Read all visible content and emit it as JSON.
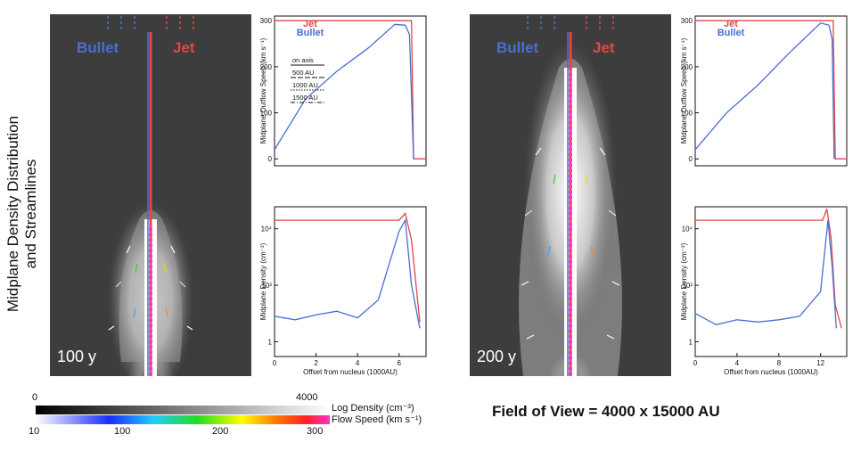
{
  "figure": {
    "vertical_title_line1": "Midplane Density Distribution",
    "vertical_title_line2": "and Streamlines",
    "field_of_view": "Field of View = 4000 x 15000 AU",
    "colorbar": {
      "density_min": "0",
      "density_max": "4000",
      "density_label": "Log Density (cm⁻³)",
      "speed_ticks": [
        "10",
        "100",
        "200",
        "300"
      ],
      "speed_label": "Flow Speed (km s⁻¹)"
    }
  },
  "panels": [
    {
      "time": "100 y",
      "bullet_label": "Bullet",
      "jet_label": "Jet"
    },
    {
      "time": "200 y",
      "bullet_label": "Bullet",
      "jet_label": "Jet"
    }
  ],
  "chart_data": [
    {
      "type": "line",
      "panel": "100 y outflow speed",
      "ylabel": "Midplane Outflow Speed (km s⁻¹)",
      "xlim": [
        0,
        7.3
      ],
      "ylim": [
        -15,
        310
      ],
      "yticks": [
        "0",
        "100",
        "200",
        "300"
      ],
      "legend": [
        "Jet",
        "Bullet"
      ],
      "legend_small": [
        "on axis",
        "500 AU",
        "1000 AU",
        "1500 AU"
      ],
      "series": [
        {
          "name": "Jet",
          "x": [
            0,
            6.6,
            6.7,
            7.3
          ],
          "y": [
            300,
            300,
            0,
            0
          ]
        },
        {
          "name": "Bullet",
          "x": [
            0,
            1.5,
            3.0,
            4.5,
            5.8,
            6.3,
            6.5,
            6.7
          ],
          "y": [
            20,
            130,
            190,
            240,
            292,
            290,
            270,
            0
          ]
        }
      ]
    },
    {
      "type": "line",
      "panel": "100 y density",
      "xlabel": "Offset from nucleus (1000AU)",
      "ylabel": "Midplane Density (cm⁻³)",
      "xlim": [
        0,
        7.3
      ],
      "ylim": [
        0.3,
        60000
      ],
      "yticks": [
        "1",
        "10²",
        "10⁴"
      ],
      "xticks": [
        "0",
        "2",
        "4",
        "6"
      ],
      "series": [
        {
          "name": "Jet",
          "x": [
            0,
            6.0,
            6.3,
            6.6,
            7.0
          ],
          "y": [
            20000,
            20000,
            35000,
            4000,
            5
          ]
        },
        {
          "name": "Bullet",
          "x": [
            0,
            1,
            2,
            3,
            4,
            5,
            6.0,
            6.3,
            6.6,
            7.0
          ],
          "y": [
            8,
            6,
            9,
            12,
            7,
            30,
            8000,
            20000,
            100,
            3
          ]
        }
      ]
    },
    {
      "type": "line",
      "panel": "200 y outflow speed",
      "ylabel": "Midplane Outflow Speed (km s⁻¹)",
      "xlim": [
        0,
        14.5
      ],
      "ylim": [
        -15,
        310
      ],
      "yticks": [
        "0",
        "100",
        "200",
        "300"
      ],
      "legend": [
        "Jet",
        "Bullet"
      ],
      "series": [
        {
          "name": "Jet",
          "x": [
            0,
            13.2,
            13.4,
            14.5
          ],
          "y": [
            300,
            300,
            0,
            0
          ]
        },
        {
          "name": "Bullet",
          "x": [
            0,
            3,
            6,
            9,
            12,
            12.8,
            13.1,
            13.3
          ],
          "y": [
            20,
            100,
            160,
            230,
            295,
            290,
            260,
            0
          ]
        }
      ]
    },
    {
      "type": "line",
      "panel": "200 y density",
      "xlabel": "Offset from nucleus (1000AU)",
      "ylabel": "Midplane Density (cm⁻³)",
      "xlim": [
        0,
        14.5
      ],
      "ylim": [
        0.3,
        60000
      ],
      "yticks": [
        "1",
        "10²",
        "10⁴"
      ],
      "xticks": [
        "0",
        "4",
        "8",
        "12"
      ],
      "series": [
        {
          "name": "Jet",
          "x": [
            0,
            12.2,
            12.6,
            13.0,
            13.4,
            14.0
          ],
          "y": [
            20000,
            20000,
            50000,
            5000,
            20,
            3
          ]
        },
        {
          "name": "Bullet",
          "x": [
            0,
            2,
            4,
            6,
            8,
            10,
            12,
            12.7,
            13.1,
            13.5
          ],
          "y": [
            10,
            4,
            6,
            5,
            6,
            8,
            60,
            20000,
            500,
            3
          ]
        }
      ]
    }
  ]
}
